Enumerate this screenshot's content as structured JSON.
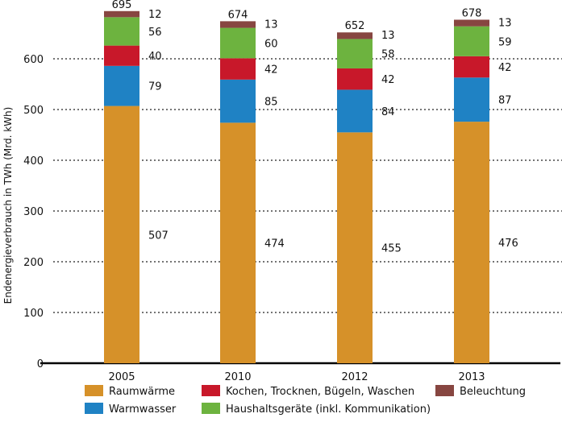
{
  "chart_data": {
    "type": "bar",
    "stacked": true,
    "ylabel": "Endenergieverbrauch in TWh (Mrd. kWh)",
    "xlabel": "",
    "ylim": [
      0,
      700
    ],
    "yticks": [
      0,
      100,
      200,
      300,
      400,
      500,
      600
    ],
    "grid": "horizontal dotted",
    "legend_position": "bottom",
    "categories": [
      "2005",
      "2010",
      "2012",
      "2013"
    ],
    "totals": [
      "695",
      "674",
      "652",
      "678"
    ],
    "series": [
      {
        "name": "Raumwärme",
        "color": "#d69129",
        "values": [
          507,
          474,
          455,
          476
        ]
      },
      {
        "name": "Warmwasser",
        "color": "#1f82c4",
        "values": [
          79,
          85,
          84,
          87
        ]
      },
      {
        "name": "Kochen, Trocknen, Bügeln, Waschen",
        "color": "#c8182a",
        "values": [
          40,
          42,
          42,
          42
        ]
      },
      {
        "name": "Haushaltsgeräte (inkl. Kommunikation)",
        "color": "#6db33f",
        "values": [
          56,
          60,
          58,
          59
        ]
      },
      {
        "name": "Beleuchtung",
        "color": "#874641",
        "values": [
          12,
          13,
          13,
          13
        ]
      }
    ]
  }
}
